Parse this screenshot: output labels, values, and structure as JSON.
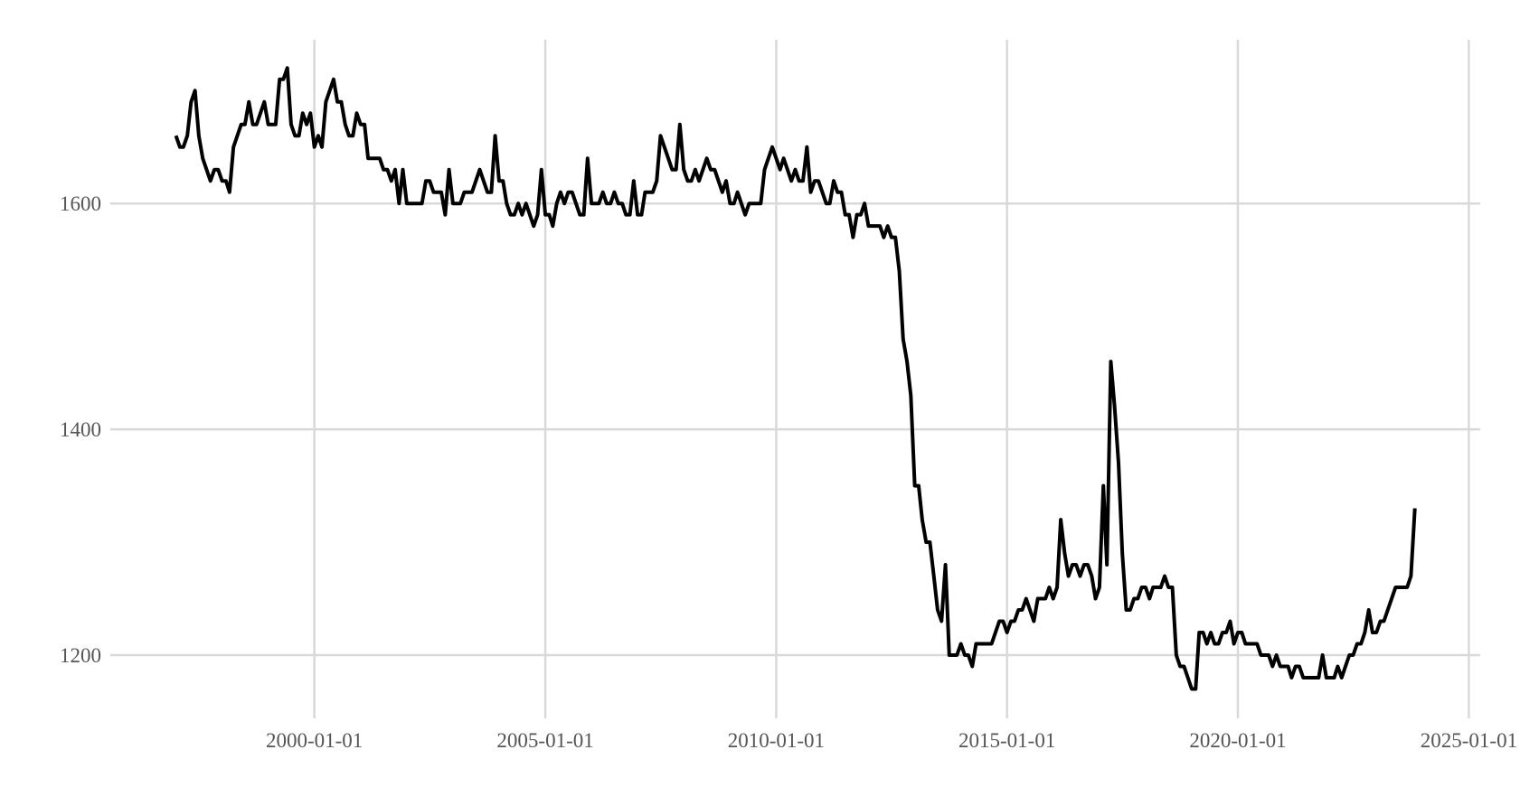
{
  "chart_data": {
    "type": "line",
    "color": "#000000",
    "grid": true,
    "x": [
      "1997-01-01",
      "1997-02-01",
      "1997-03-01",
      "1997-04-01",
      "1997-05-01",
      "1997-06-01",
      "1997-07-01",
      "1997-08-01",
      "1997-10-01",
      "1997-11-01",
      "1997-12-01",
      "1998-01-01",
      "1998-02-01",
      "1998-03-01",
      "1998-04-01",
      "1998-06-01",
      "1998-07-01",
      "1998-08-01",
      "1998-09-01",
      "1998-10-01",
      "1998-12-01",
      "1999-01-01",
      "1999-03-01",
      "1999-04-01",
      "1999-05-01",
      "1999-06-01",
      "1999-07-01",
      "1999-08-01",
      "1999-09-01",
      "1999-10-01",
      "1999-11-01",
      "1999-12-01",
      "2000-01-01",
      "2000-02-01",
      "2000-03-01",
      "2000-04-01",
      "2000-06-01",
      "2000-07-01",
      "2000-08-01",
      "2000-09-01",
      "2000-10-01",
      "2000-11-01",
      "2000-12-01",
      "2001-01-01",
      "2001-02-01",
      "2001-03-01",
      "2001-06-01",
      "2001-07-01",
      "2001-08-01",
      "2001-09-01",
      "2001-10-01",
      "2001-11-01",
      "2001-12-01",
      "2002-01-01",
      "2002-05-01",
      "2002-06-01",
      "2002-07-01",
      "2002-08-01",
      "2002-10-01",
      "2002-11-01",
      "2002-12-01",
      "2003-01-01",
      "2003-03-01",
      "2003-04-01",
      "2003-06-01",
      "2003-08-01",
      "2003-10-01",
      "2003-11-01",
      "2003-12-01",
      "2004-01-01",
      "2004-02-01",
      "2004-03-01",
      "2004-04-01",
      "2004-05-01",
      "2004-06-01",
      "2004-07-01",
      "2004-08-01",
      "2004-10-01",
      "2004-11-01",
      "2004-12-01",
      "2005-01-01",
      "2005-02-01",
      "2005-03-01",
      "2005-04-01",
      "2005-05-01",
      "2005-06-01",
      "2005-07-01",
      "2005-08-01",
      "2005-10-01",
      "2005-11-01",
      "2005-12-01",
      "2006-01-01",
      "2006-03-01",
      "2006-04-01",
      "2006-05-01",
      "2006-06-01",
      "2006-07-01",
      "2006-08-01",
      "2006-09-01",
      "2006-10-01",
      "2006-11-01",
      "2006-12-01",
      "2007-01-01",
      "2007-02-01",
      "2007-03-01",
      "2007-05-01",
      "2007-06-01",
      "2007-07-01",
      "2007-10-01",
      "2007-11-01",
      "2007-12-01",
      "2008-01-01",
      "2008-02-01",
      "2008-03-01",
      "2008-04-01",
      "2008-05-01",
      "2008-07-01",
      "2008-08-01",
      "2008-09-01",
      "2008-11-01",
      "2008-12-01",
      "2009-01-01",
      "2009-02-01",
      "2009-03-01",
      "2009-05-01",
      "2009-06-01",
      "2009-09-01",
      "2009-10-01",
      "2009-12-01",
      "2010-02-01",
      "2010-03-01",
      "2010-05-01",
      "2010-06-01",
      "2010-07-01",
      "2010-08-01",
      "2010-09-01",
      "2010-10-01",
      "2010-11-01",
      "2010-12-01",
      "2011-02-01",
      "2011-03-01",
      "2011-04-01",
      "2011-05-01",
      "2011-06-01",
      "2011-07-01",
      "2011-08-01",
      "2011-09-01",
      "2011-10-01",
      "2011-11-01",
      "2011-12-01",
      "2012-01-01",
      "2012-04-01",
      "2012-05-01",
      "2012-06-01",
      "2012-07-01",
      "2012-08-01",
      "2012-09-01",
      "2012-10-01",
      "2012-11-01",
      "2012-12-01",
      "2013-01-01",
      "2013-02-01",
      "2013-03-01",
      "2013-04-01",
      "2013-05-01",
      "2013-06-01",
      "2013-07-01",
      "2013-08-01",
      "2013-09-01",
      "2013-10-01",
      "2013-11-01",
      "2013-12-01",
      "2014-01-01",
      "2014-02-01",
      "2014-03-01",
      "2014-04-01",
      "2014-05-01",
      "2014-09-01",
      "2014-11-01",
      "2014-12-01",
      "2015-01-01",
      "2015-02-01",
      "2015-03-01",
      "2015-04-01",
      "2015-05-01",
      "2015-06-01",
      "2015-08-01",
      "2015-09-01",
      "2015-11-01",
      "2015-12-01",
      "2016-01-01",
      "2016-02-01",
      "2016-03-01",
      "2016-04-01",
      "2016-05-01",
      "2016-06-01",
      "2016-07-01",
      "2016-08-01",
      "2016-09-01",
      "2016-10-01",
      "2016-11-01",
      "2016-12-01",
      "2017-01-01",
      "2017-02-01",
      "2017-03-01",
      "2017-04-01",
      "2017-05-01",
      "2017-06-01",
      "2017-07-01",
      "2017-08-01",
      "2017-09-01",
      "2017-10-01",
      "2017-11-01",
      "2017-12-01",
      "2018-01-01",
      "2018-02-01",
      "2018-03-01",
      "2018-05-01",
      "2018-06-01",
      "2018-07-01",
      "2018-08-01",
      "2018-09-01",
      "2018-10-01",
      "2018-11-01",
      "2019-01-01",
      "2019-02-01",
      "2019-03-01",
      "2019-04-01",
      "2019-05-01",
      "2019-06-01",
      "2019-07-01",
      "2019-08-01",
      "2019-09-01",
      "2019-10-01",
      "2019-11-01",
      "2019-12-01",
      "2020-01-01",
      "2020-02-01",
      "2020-03-01",
      "2020-06-01",
      "2020-07-01",
      "2020-09-01",
      "2020-10-01",
      "2020-11-01",
      "2020-12-01",
      "2021-02-01",
      "2021-03-01",
      "2021-04-01",
      "2021-05-01",
      "2021-06-01",
      "2021-10-01",
      "2021-11-01",
      "2021-12-01",
      "2022-02-01",
      "2022-03-01",
      "2022-04-01",
      "2022-05-01",
      "2022-06-01",
      "2022-07-01",
      "2022-08-01",
      "2022-09-01",
      "2022-10-01",
      "2022-11-01",
      "2022-12-01",
      "2023-01-01",
      "2023-02-01",
      "2023-03-01",
      "2023-06-01",
      "2023-09-01",
      "2023-10-01",
      "2023-11-01"
    ],
    "values": [
      1660,
      1650,
      1650,
      1660,
      1690,
      1700,
      1660,
      1640,
      1620,
      1630,
      1630,
      1620,
      1620,
      1610,
      1650,
      1670,
      1670,
      1690,
      1670,
      1670,
      1690,
      1670,
      1670,
      1710,
      1710,
      1720,
      1670,
      1660,
      1660,
      1680,
      1670,
      1680,
      1650,
      1660,
      1650,
      1690,
      1710,
      1690,
      1690,
      1670,
      1660,
      1660,
      1680,
      1670,
      1670,
      1640,
      1640,
      1630,
      1630,
      1620,
      1630,
      1600,
      1630,
      1600,
      1600,
      1620,
      1620,
      1610,
      1610,
      1590,
      1630,
      1600,
      1600,
      1610,
      1610,
      1630,
      1610,
      1610,
      1660,
      1620,
      1620,
      1600,
      1590,
      1590,
      1600,
      1590,
      1600,
      1580,
      1590,
      1630,
      1590,
      1590,
      1580,
      1600,
      1610,
      1600,
      1610,
      1610,
      1590,
      1590,
      1640,
      1600,
      1600,
      1610,
      1600,
      1600,
      1610,
      1600,
      1600,
      1590,
      1590,
      1620,
      1590,
      1590,
      1610,
      1610,
      1620,
      1660,
      1630,
      1630,
      1670,
      1630,
      1620,
      1620,
      1630,
      1620,
      1640,
      1630,
      1630,
      1610,
      1620,
      1600,
      1600,
      1610,
      1590,
      1600,
      1600,
      1630,
      1650,
      1630,
      1640,
      1620,
      1630,
      1620,
      1620,
      1650,
      1610,
      1620,
      1620,
      1600,
      1600,
      1620,
      1610,
      1610,
      1590,
      1590,
      1570,
      1590,
      1590,
      1600,
      1580,
      1580,
      1570,
      1580,
      1570,
      1570,
      1540,
      1480,
      1460,
      1430,
      1350,
      1350,
      1320,
      1300,
      1300,
      1270,
      1240,
      1230,
      1280,
      1200,
      1200,
      1200,
      1210,
      1200,
      1200,
      1190,
      1210,
      1210,
      1230,
      1230,
      1220,
      1230,
      1230,
      1240,
      1240,
      1250,
      1230,
      1250,
      1250,
      1260,
      1250,
      1260,
      1320,
      1290,
      1270,
      1280,
      1280,
      1270,
      1280,
      1280,
      1270,
      1250,
      1260,
      1350,
      1280,
      1460,
      1420,
      1370,
      1290,
      1240,
      1240,
      1250,
      1250,
      1260,
      1260,
      1250,
      1260,
      1260,
      1270,
      1260,
      1260,
      1200,
      1190,
      1190,
      1170,
      1170,
      1220,
      1220,
      1210,
      1220,
      1210,
      1210,
      1220,
      1220,
      1230,
      1210,
      1220,
      1220,
      1210,
      1210,
      1200,
      1200,
      1190,
      1200,
      1190,
      1190,
      1180,
      1190,
      1190,
      1180,
      1180,
      1200,
      1180,
      1180,
      1190,
      1180,
      1190,
      1200,
      1200,
      1210,
      1210,
      1220,
      1240,
      1220,
      1220,
      1230,
      1230,
      1260,
      1260,
      1270,
      1330
    ],
    "xlim": [
      "1995-08-01",
      "2025-04-01"
    ],
    "xticks": [
      "2000-01-01",
      "2005-01-01",
      "2010-01-01",
      "2015-01-01",
      "2020-01-01",
      "2025-01-01"
    ],
    "ylim": [
      1160,
      1745
    ],
    "yticks": [
      1200,
      1400,
      1600
    ]
  }
}
